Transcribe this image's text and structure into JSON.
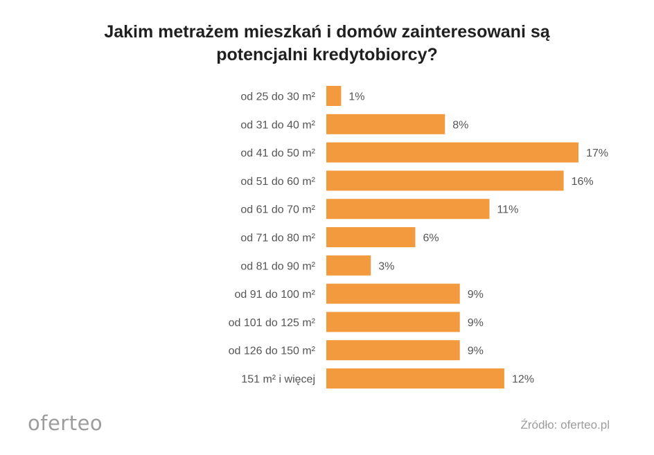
{
  "chart_data": {
    "type": "bar",
    "orientation": "horizontal",
    "title": "Jakim metrażem mieszkań i domów zainteresowani są potencjalni kredytobiorcy?",
    "title_lines": [
      "Jakim metrażem mieszkań i domów zainteresowani są",
      "potencjalni kredytobiorcy?"
    ],
    "categories": [
      "od 25 do 30 m²",
      "od 31 do 40 m²",
      "od 41 do 50 m²",
      "od 51 do 60 m²",
      "od 61 do 70 m²",
      "od 71 do 80 m²",
      "od 81 do 90 m²",
      "od 91 do 100 m²",
      "od 101 do 125 m²",
      "od 126 do 150 m²",
      "151 m² i więcej"
    ],
    "values": [
      1,
      8,
      17,
      16,
      11,
      6,
      3,
      9,
      9,
      9,
      12
    ],
    "value_labels": [
      "1%",
      "8%",
      "17%",
      "16%",
      "11%",
      "6%",
      "3%",
      "9%",
      "9%",
      "9%",
      "12%"
    ],
    "unit": "%",
    "xlim": [
      0,
      17
    ],
    "grid": false,
    "bar_color": "#f39a3f"
  },
  "footer": {
    "logo": "oferteo",
    "source": "Źródło: oferteo.pl"
  }
}
